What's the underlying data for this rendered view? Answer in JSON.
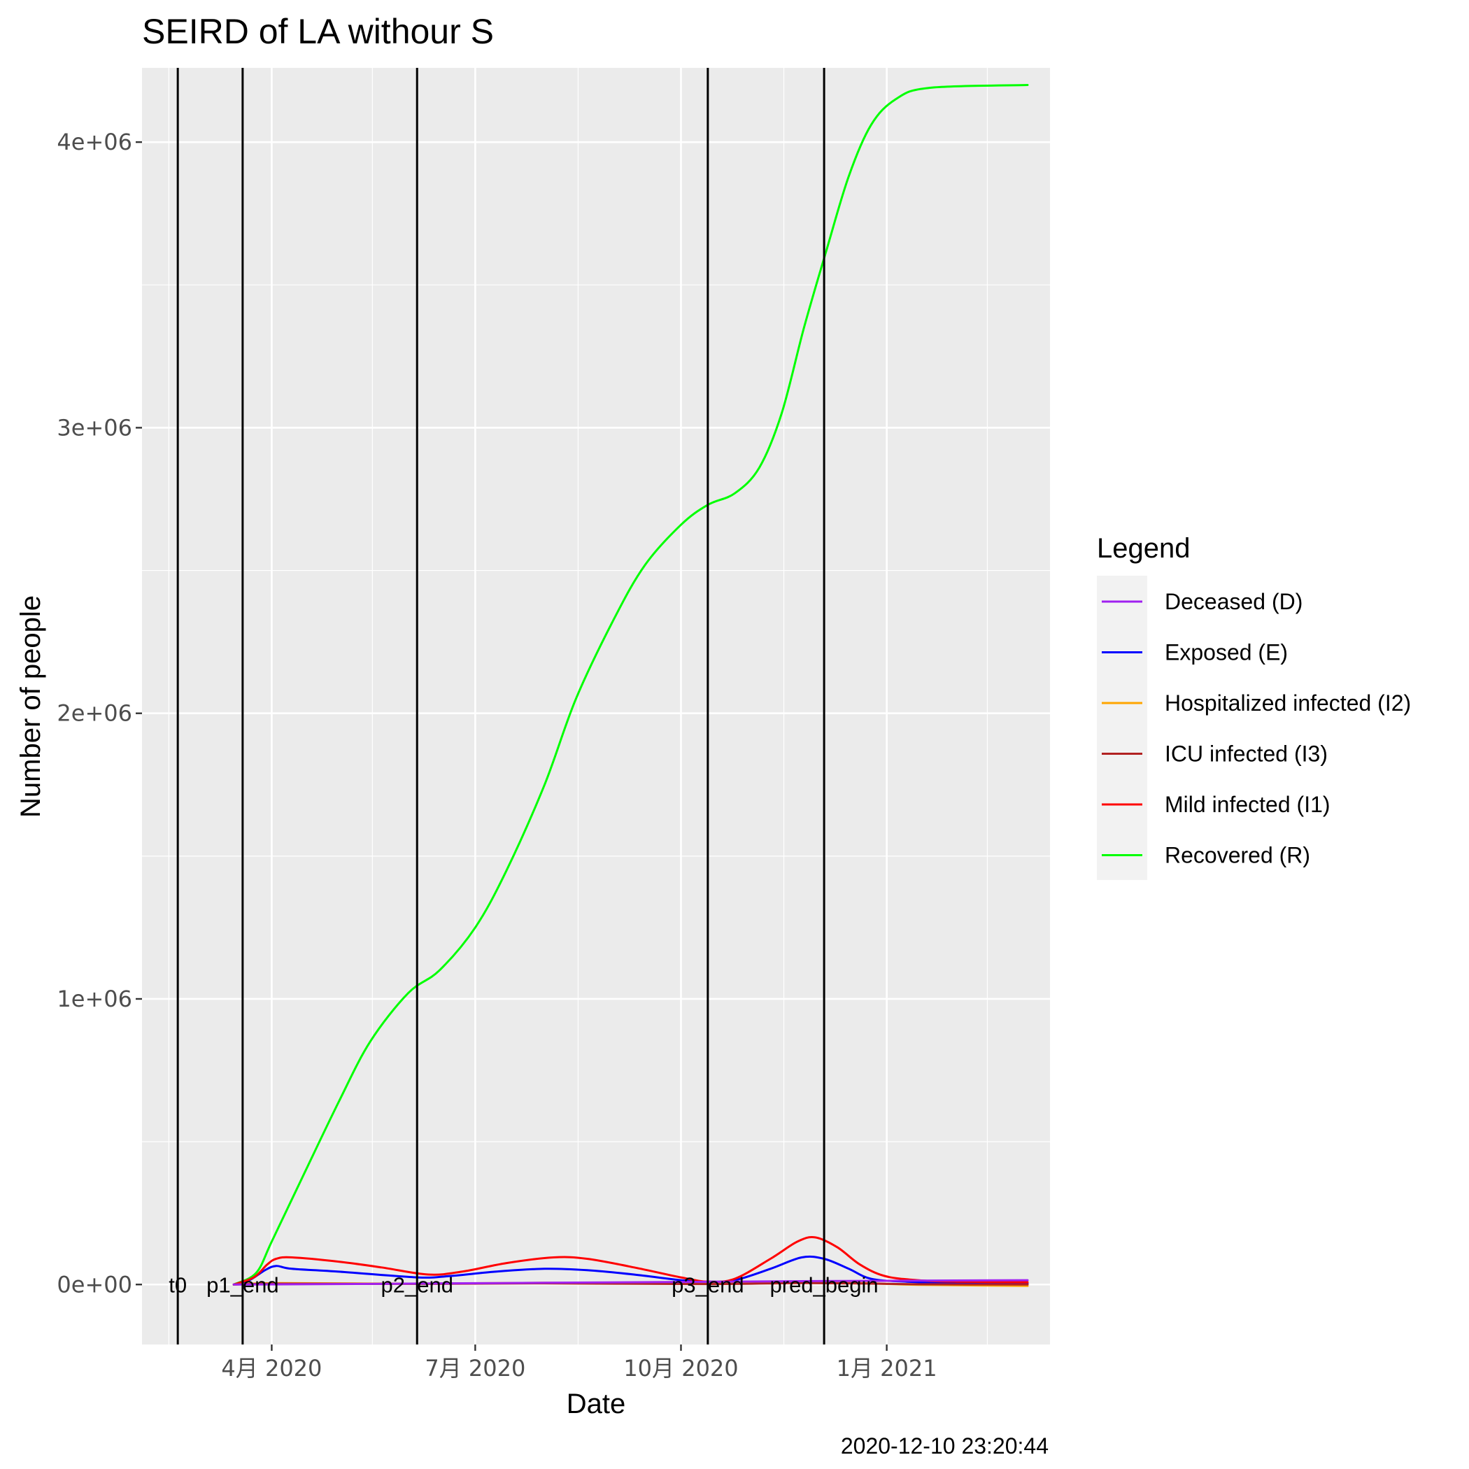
{
  "chart_data": {
    "type": "line",
    "title": "SEIRD of LA withour S",
    "xlabel": "Date",
    "ylabel": "Number of people",
    "caption": "2020-12-10 23:20:44",
    "x_range": [
      "2020-02-03",
      "2021-03-15"
    ],
    "ylim": [
      -210000,
      4260000
    ],
    "grid": true,
    "legend_position": "right",
    "x_ticks": [
      {
        "date": "2020-04-01",
        "label": "4月 2020"
      },
      {
        "date": "2020-07-01",
        "label": "7月 2020"
      },
      {
        "date": "2020-10-01",
        "label": "10月 2020"
      },
      {
        "date": "2021-01-01",
        "label": "1月 2021"
      }
    ],
    "x_minor_ticks": [
      "2020-02-15",
      "2020-05-16",
      "2020-08-16",
      "2020-11-16",
      "2021-02-15"
    ],
    "y_ticks": [
      {
        "value": 0,
        "label": "0e+00"
      },
      {
        "value": 1000000,
        "label": "1e+06"
      },
      {
        "value": 2000000,
        "label": "2e+06"
      },
      {
        "value": 3000000,
        "label": "3e+06"
      },
      {
        "value": 4000000,
        "label": "4e+06"
      }
    ],
    "y_minor_ticks": [
      500000,
      1500000,
      2500000,
      3500000
    ],
    "vlines": [
      {
        "date": "2020-02-19",
        "label": "t0"
      },
      {
        "date": "2020-03-19",
        "label": "p1_end"
      },
      {
        "date": "2020-06-05",
        "label": "p2_end"
      },
      {
        "date": "2020-10-13",
        "label": "p3_end"
      },
      {
        "date": "2020-12-04",
        "label": "pred_begin"
      }
    ],
    "legend_title": "Legend",
    "series": [
      {
        "name": "Deceased (D)",
        "color": "#A020F0",
        "points": [
          [
            "2020-03-15",
            0
          ],
          [
            "2020-04-15",
            1000
          ],
          [
            "2020-06-01",
            3000
          ],
          [
            "2020-08-01",
            6000
          ],
          [
            "2020-10-01",
            9000
          ],
          [
            "2020-12-01",
            12000
          ],
          [
            "2021-03-05",
            15000
          ]
        ]
      },
      {
        "name": "Exposed (E)",
        "color": "#0000FF",
        "points": [
          [
            "2020-03-15",
            0
          ],
          [
            "2020-03-22",
            15000
          ],
          [
            "2020-03-29",
            50000
          ],
          [
            "2020-04-03",
            65000
          ],
          [
            "2020-04-10",
            55000
          ],
          [
            "2020-05-01",
            45000
          ],
          [
            "2020-06-05",
            25000
          ],
          [
            "2020-06-20",
            30000
          ],
          [
            "2020-07-10",
            45000
          ],
          [
            "2020-08-01",
            55000
          ],
          [
            "2020-08-20",
            50000
          ],
          [
            "2020-09-10",
            35000
          ],
          [
            "2020-10-01",
            15000
          ],
          [
            "2020-10-13",
            10000
          ],
          [
            "2020-10-25",
            15000
          ],
          [
            "2020-11-10",
            55000
          ],
          [
            "2020-11-24",
            95000
          ],
          [
            "2020-12-04",
            90000
          ],
          [
            "2020-12-15",
            55000
          ],
          [
            "2020-12-25",
            20000
          ],
          [
            "2021-01-10",
            10000
          ],
          [
            "2021-02-01",
            5000
          ],
          [
            "2021-03-05",
            3000
          ]
        ]
      },
      {
        "name": "Hospitalized infected (I2)",
        "color": "#FFA500",
        "points": [
          [
            "2020-03-15",
            0
          ],
          [
            "2020-04-05",
            5000
          ],
          [
            "2020-06-01",
            3000
          ],
          [
            "2020-08-01",
            6000
          ],
          [
            "2020-10-13",
            2000
          ],
          [
            "2020-11-24",
            8000
          ],
          [
            "2020-12-25",
            4000
          ],
          [
            "2021-01-15",
            -1000
          ],
          [
            "2021-03-05",
            -5000
          ]
        ]
      },
      {
        "name": "ICU infected (I3)",
        "color": "#B22222",
        "points": [
          [
            "2020-03-15",
            0
          ],
          [
            "2020-04-05",
            3000
          ],
          [
            "2020-06-01",
            2000
          ],
          [
            "2020-08-01",
            4000
          ],
          [
            "2020-10-13",
            1500
          ],
          [
            "2020-11-24",
            5000
          ],
          [
            "2020-12-25",
            3000
          ],
          [
            "2021-01-15",
            1000
          ],
          [
            "2021-03-05",
            0
          ]
        ]
      },
      {
        "name": "Mild infected (I1)",
        "color": "#FF0000",
        "points": [
          [
            "2020-03-15",
            0
          ],
          [
            "2020-03-24",
            25000
          ],
          [
            "2020-03-30",
            70000
          ],
          [
            "2020-04-03",
            90000
          ],
          [
            "2020-04-10",
            95000
          ],
          [
            "2020-05-01",
            80000
          ],
          [
            "2020-05-20",
            60000
          ],
          [
            "2020-06-10",
            35000
          ],
          [
            "2020-06-25",
            45000
          ],
          [
            "2020-07-15",
            75000
          ],
          [
            "2020-08-05",
            95000
          ],
          [
            "2020-08-20",
            90000
          ],
          [
            "2020-09-10",
            60000
          ],
          [
            "2020-10-01",
            25000
          ],
          [
            "2020-10-13",
            10000
          ],
          [
            "2020-10-25",
            20000
          ],
          [
            "2020-11-10",
            90000
          ],
          [
            "2020-11-22",
            150000
          ],
          [
            "2020-11-30",
            165000
          ],
          [
            "2020-12-10",
            130000
          ],
          [
            "2020-12-20",
            70000
          ],
          [
            "2020-12-31",
            30000
          ],
          [
            "2021-01-15",
            15000
          ],
          [
            "2021-02-01",
            10000
          ],
          [
            "2021-03-05",
            8000
          ]
        ]
      },
      {
        "name": "Recovered (R)",
        "color": "#00FF00",
        "points": [
          [
            "2020-03-15",
            0
          ],
          [
            "2020-03-25",
            40000
          ],
          [
            "2020-04-01",
            150000
          ],
          [
            "2020-04-15",
            380000
          ],
          [
            "2020-05-01",
            640000
          ],
          [
            "2020-05-15",
            850000
          ],
          [
            "2020-06-01",
            1020000
          ],
          [
            "2020-06-15",
            1100000
          ],
          [
            "2020-07-01",
            1250000
          ],
          [
            "2020-07-15",
            1450000
          ],
          [
            "2020-08-01",
            1750000
          ],
          [
            "2020-08-15",
            2050000
          ],
          [
            "2020-09-01",
            2330000
          ],
          [
            "2020-09-15",
            2520000
          ],
          [
            "2020-10-01",
            2660000
          ],
          [
            "2020-10-13",
            2730000
          ],
          [
            "2020-10-25",
            2770000
          ],
          [
            "2020-11-05",
            2860000
          ],
          [
            "2020-11-15",
            3050000
          ],
          [
            "2020-11-25",
            3350000
          ],
          [
            "2020-12-05",
            3620000
          ],
          [
            "2020-12-15",
            3880000
          ],
          [
            "2020-12-25",
            4060000
          ],
          [
            "2021-01-05",
            4150000
          ],
          [
            "2021-01-20",
            4190000
          ],
          [
            "2021-03-05",
            4200000
          ]
        ]
      }
    ]
  }
}
